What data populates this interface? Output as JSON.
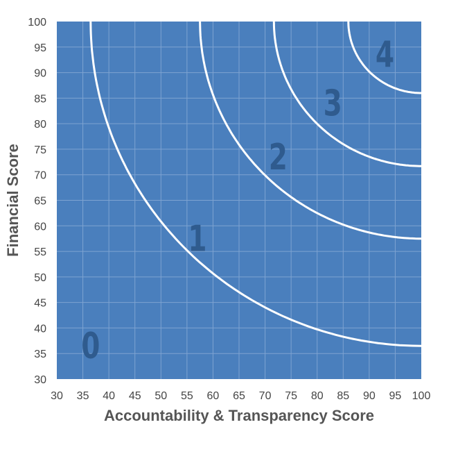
{
  "chart_data": {
    "type": "line",
    "xlabel": "Accountability & Transparency Score",
    "ylabel": "Financial Score",
    "xlim": [
      30,
      100
    ],
    "ylim": [
      30,
      100
    ],
    "x_ticks": [
      30,
      35,
      40,
      45,
      50,
      55,
      60,
      65,
      70,
      75,
      80,
      85,
      90,
      95,
      100
    ],
    "y_ticks": [
      30,
      35,
      40,
      45,
      50,
      55,
      60,
      65,
      70,
      75,
      80,
      85,
      90,
      95,
      100
    ],
    "grid": true,
    "background_color": "#4a7fbd",
    "grid_color": "#7ea3d1",
    "curve_color": "#ffffff",
    "zone_label_color": "#2f5b8e",
    "boundary_arcs": [
      {
        "center": [
          100,
          100
        ],
        "radius": 63.5
      },
      {
        "center": [
          100,
          100
        ],
        "radius": 42.5
      },
      {
        "center": [
          100,
          100
        ],
        "radius": 28.3
      },
      {
        "center": [
          100,
          100
        ],
        "radius": 14.0
      }
    ],
    "zone_labels": [
      {
        "text": "0",
        "x": 36.5,
        "y": 36
      },
      {
        "text": "1",
        "x": 57,
        "y": 57
      },
      {
        "text": "2",
        "x": 72.5,
        "y": 73
      },
      {
        "text": "3",
        "x": 83,
        "y": 83.5
      },
      {
        "text": "4",
        "x": 93,
        "y": 93
      }
    ]
  }
}
